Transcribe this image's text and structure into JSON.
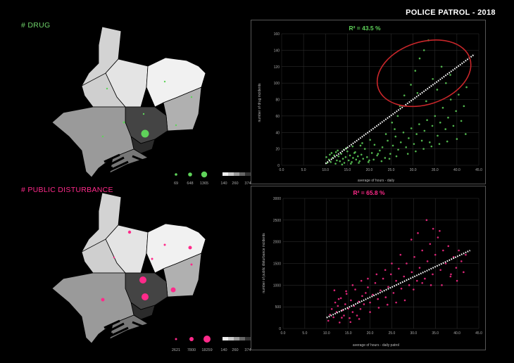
{
  "title": "POLICE PATROL - 2018",
  "colors": {
    "drug": "#5fd35a",
    "pd": "#ff2a8a",
    "trend": "#ffffff",
    "ellipse": "#c8262a"
  },
  "drug_panel": {
    "label": "# DRUG",
    "size_legend": [
      "69",
      "648",
      "1365"
    ],
    "gray_legend": [
      "140",
      "260",
      "374"
    ]
  },
  "pd_panel": {
    "label": "# PUBLIC DISTURBANCE",
    "size_legend": [
      "2621",
      "7800",
      "18259"
    ],
    "gray_legend": [
      "140",
      "260",
      "374"
    ]
  },
  "chart_data": [
    {
      "type": "scatter",
      "r2_label": "R² = ",
      "r2_value": "43.5 %",
      "xlabel": "average of hours - daily",
      "ylabel": "number of drug incidents",
      "xlim": [
        0,
        45
      ],
      "ylim": [
        0,
        160
      ],
      "xticks": [
        "0.0",
        "5.0",
        "10.0",
        "15.0",
        "20.0",
        "25.0",
        "30.0",
        "35.0",
        "40.0",
        "45.0"
      ],
      "yticks": [
        "0",
        "20",
        "40",
        "60",
        "80",
        "100",
        "120",
        "140",
        "160"
      ],
      "trend": [
        [
          10,
          2
        ],
        [
          44,
          135
        ]
      ],
      "highlight_ellipse": {
        "cx": 32.5,
        "cy": 112,
        "rx": 11,
        "ry": 38
      },
      "points": [
        [
          10.4,
          3
        ],
        [
          10.8,
          7
        ],
        [
          11.2,
          4
        ],
        [
          11.6,
          9
        ],
        [
          12,
          12
        ],
        [
          12.3,
          2
        ],
        [
          12.6,
          6
        ],
        [
          13,
          11
        ],
        [
          13.3,
          5
        ],
        [
          13.6,
          14
        ],
        [
          14,
          8
        ],
        [
          14.3,
          3
        ],
        [
          14.6,
          10
        ],
        [
          15,
          17
        ],
        [
          15.3,
          6
        ],
        [
          15.6,
          12
        ],
        [
          16,
          4
        ],
        [
          16.3,
          9
        ],
        [
          16.6,
          15
        ],
        [
          17,
          7
        ],
        [
          17.4,
          11
        ],
        [
          17.8,
          5
        ],
        [
          18.2,
          13
        ],
        [
          18.6,
          8
        ],
        [
          19,
          20
        ],
        [
          19.5,
          10
        ],
        [
          20,
          6
        ],
        [
          20.6,
          15
        ],
        [
          21.2,
          25
        ],
        [
          21.8,
          12
        ],
        [
          22.4,
          18
        ],
        [
          23,
          22
        ],
        [
          23.6,
          9
        ],
        [
          24.2,
          30
        ],
        [
          24.8,
          14
        ],
        [
          25.4,
          24
        ],
        [
          26,
          35
        ],
        [
          26.6,
          19
        ],
        [
          27.2,
          28
        ],
        [
          27.8,
          40
        ],
        [
          28.4,
          22
        ],
        [
          29,
          33
        ],
        [
          29.6,
          45
        ],
        [
          30.2,
          26
        ],
        [
          30.8,
          38
        ],
        [
          31.4,
          50
        ],
        [
          32,
          30
        ],
        [
          32.6,
          42
        ],
        [
          33.2,
          55
        ],
        [
          33.8,
          28
        ],
        [
          34.4,
          48
        ],
        [
          35,
          60
        ],
        [
          35.6,
          36
        ],
        [
          36.2,
          52
        ],
        [
          36.8,
          70
        ],
        [
          37.4,
          44
        ],
        [
          38,
          58
        ],
        [
          38.6,
          80
        ],
        [
          39.2,
          48
        ],
        [
          39.8,
          66
        ],
        [
          40.4,
          86
        ],
        [
          41,
          54
        ],
        [
          41.6,
          72
        ],
        [
          42.2,
          95
        ],
        [
          28,
          85
        ],
        [
          29.5,
          98
        ],
        [
          30.5,
          115
        ],
        [
          31.5,
          130
        ],
        [
          32.5,
          140
        ],
        [
          33.5,
          152
        ],
        [
          34.5,
          105
        ],
        [
          35.5,
          92
        ],
        [
          36.5,
          120
        ],
        [
          37.5,
          100
        ],
        [
          38.5,
          110
        ],
        [
          27,
          72
        ],
        [
          26.5,
          60
        ],
        [
          25.2,
          52
        ],
        [
          31,
          88
        ],
        [
          33,
          78
        ],
        [
          11.4,
          15
        ],
        [
          12.8,
          18
        ],
        [
          14.8,
          21
        ],
        [
          16.8,
          16
        ],
        [
          18,
          24
        ],
        [
          13.8,
          1
        ],
        [
          15.8,
          2
        ],
        [
          17.6,
          3
        ],
        [
          19.8,
          4
        ],
        [
          21,
          7
        ],
        [
          22.8,
          5
        ],
        [
          24.6,
          8
        ],
        [
          26.2,
          11
        ],
        [
          28.8,
          14
        ],
        [
          30.6,
          17
        ],
        [
          32.4,
          20
        ],
        [
          34.2,
          23
        ],
        [
          36,
          26
        ],
        [
          37.8,
          29
        ],
        [
          40,
          32
        ],
        [
          42,
          38
        ],
        [
          10.2,
          10
        ],
        [
          11,
          13
        ],
        [
          12.4,
          16
        ],
        [
          14.2,
          19
        ],
        [
          16.2,
          23
        ],
        [
          18.4,
          27
        ],
        [
          20.2,
          31
        ],
        [
          22,
          14
        ],
        [
          23.8,
          38
        ],
        [
          25.8,
          44
        ]
      ]
    },
    {
      "type": "scatter",
      "r2_label": "R² = ",
      "r2_value": "65.8 %",
      "xlabel": "average of hours - daily patrol",
      "ylabel": "number of public disturbance incidents",
      "xlim": [
        0,
        45
      ],
      "ylim": [
        0,
        3000
      ],
      "xticks": [
        "0.0",
        "5.0",
        "10.0",
        "15.0",
        "20.0",
        "25.0",
        "30.0",
        "35.0",
        "40.0",
        "45.0"
      ],
      "yticks": [
        "0",
        "500",
        "1000",
        "1500",
        "2000",
        "2500",
        "3000"
      ],
      "trend": [
        [
          10,
          250
        ],
        [
          43,
          1800
        ]
      ],
      "points": [
        [
          10.4,
          180
        ],
        [
          10.8,
          320
        ],
        [
          11.2,
          450
        ],
        [
          11.6,
          260
        ],
        [
          12,
          600
        ],
        [
          12.3,
          380
        ],
        [
          12.6,
          520
        ],
        [
          13,
          140
        ],
        [
          13.3,
          700
        ],
        [
          13.6,
          420
        ],
        [
          14,
          300
        ],
        [
          14.3,
          560
        ],
        [
          14.6,
          800
        ],
        [
          15,
          460
        ],
        [
          15.3,
          240
        ],
        [
          15.6,
          650
        ],
        [
          16,
          380
        ],
        [
          16.3,
          520
        ],
        [
          16.6,
          900
        ],
        [
          17,
          300
        ],
        [
          17.4,
          620
        ],
        [
          17.8,
          450
        ],
        [
          18.2,
          750
        ],
        [
          18.6,
          560
        ],
        [
          19,
          820
        ],
        [
          19.5,
          950
        ],
        [
          20,
          600
        ],
        [
          20.6,
          780
        ],
        [
          21.2,
          1050
        ],
        [
          21.8,
          680
        ],
        [
          22.4,
          880
        ],
        [
          23,
          1150
        ],
        [
          23.6,
          720
        ],
        [
          24.2,
          960
        ],
        [
          24.8,
          1250
        ],
        [
          25.4,
          820
        ],
        [
          26,
          1100
        ],
        [
          26.6,
          1380
        ],
        [
          27.2,
          920
        ],
        [
          27.8,
          1200
        ],
        [
          28.4,
          1500
        ],
        [
          29,
          1000
        ],
        [
          29.6,
          1300
        ],
        [
          30.2,
          1650
        ],
        [
          30.8,
          1100
        ],
        [
          31.4,
          1400
        ],
        [
          32,
          1800
        ],
        [
          32.6,
          1150
        ],
        [
          33.2,
          1550
        ],
        [
          33.8,
          1950
        ],
        [
          34.4,
          1250
        ],
        [
          35,
          1700
        ],
        [
          35.6,
          2100
        ],
        [
          36.2,
          1350
        ],
        [
          36.8,
          1800
        ],
        [
          37.4,
          1500
        ],
        [
          38,
          1900
        ],
        [
          38.6,
          1250
        ],
        [
          39.2,
          1650
        ],
        [
          39.8,
          1400
        ],
        [
          40.4,
          1800
        ],
        [
          41,
          1550
        ],
        [
          42,
          1700
        ],
        [
          33,
          2500
        ],
        [
          34.5,
          2300
        ],
        [
          31,
          2200
        ],
        [
          29.5,
          2050
        ],
        [
          36,
          2250
        ],
        [
          30,
          900
        ],
        [
          32,
          1050
        ],
        [
          34,
          1000
        ],
        [
          28,
          650
        ],
        [
          26,
          600
        ],
        [
          24,
          550
        ],
        [
          22,
          480
        ],
        [
          20,
          380
        ],
        [
          13.5,
          250
        ],
        [
          15.5,
          150
        ],
        [
          17.5,
          220
        ],
        [
          12.8,
          680
        ],
        [
          14.5,
          860
        ],
        [
          16,
          1000
        ],
        [
          18,
          1100
        ],
        [
          11.8,
          880
        ],
        [
          36.5,
          1000
        ],
        [
          38.5,
          1200
        ],
        [
          40,
          1100
        ],
        [
          41.5,
          1300
        ],
        [
          27,
          1700
        ],
        [
          25,
          1500
        ],
        [
          23.5,
          1350
        ],
        [
          21.5,
          1250
        ],
        [
          19.5,
          1150
        ]
      ]
    }
  ]
}
